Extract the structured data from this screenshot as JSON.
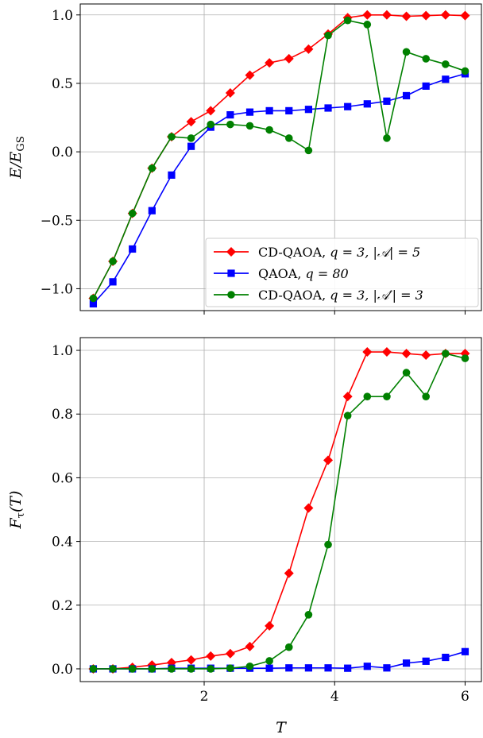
{
  "chart_data": [
    {
      "type": "line",
      "ylabel": "E/E_GS",
      "ylabel_parts": {
        "main": "E/E",
        "sub": "GS"
      },
      "xlim": [
        0.1,
        6.25
      ],
      "ylim": [
        -1.16,
        1.08
      ],
      "xticks": [
        2,
        4,
        6
      ],
      "xtick_labels": [],
      "yticks": [
        -1.0,
        -0.5,
        0.0,
        0.5,
        1.0
      ],
      "ytick_labels": [
        "−1.0",
        "−0.5",
        "0.0",
        "0.5",
        "1.0"
      ],
      "grid": true,
      "legend_position": "lower-right",
      "x": [
        0.3,
        0.6,
        0.9,
        1.2,
        1.5,
        1.8,
        2.1,
        2.4,
        2.7,
        3.0,
        3.3,
        3.6,
        3.9,
        4.2,
        4.5,
        4.8,
        5.1,
        5.4,
        5.7,
        6.0
      ],
      "series": [
        {
          "name": "CD-QAOA, q = 3, |𝒜| = 5",
          "color": "#ff0000",
          "marker": "diamond",
          "values": [
            -1.07,
            -0.8,
            -0.45,
            -0.12,
            0.11,
            0.22,
            0.3,
            0.43,
            0.56,
            0.65,
            0.68,
            0.75,
            0.86,
            0.98,
            1.0,
            1.0,
            0.99,
            0.995,
            1.0,
            0.995
          ]
        },
        {
          "name": "QAOA, q = 80",
          "color": "#0000ff",
          "marker": "square",
          "values": [
            -1.11,
            -0.95,
            -0.71,
            -0.43,
            -0.17,
            0.04,
            0.18,
            0.27,
            0.29,
            0.3,
            0.3,
            0.31,
            0.32,
            0.33,
            0.35,
            0.37,
            0.41,
            0.48,
            0.53,
            0.57
          ]
        },
        {
          "name": "CD-QAOA, q = 3, |𝒜′| = 3",
          "color": "#008000",
          "marker": "circle",
          "values": [
            -1.07,
            -0.8,
            -0.45,
            -0.12,
            0.11,
            0.1,
            0.2,
            0.2,
            0.19,
            0.16,
            0.1,
            0.01,
            0.85,
            0.96,
            0.93,
            0.1,
            0.73,
            0.68,
            0.64,
            0.59
          ]
        }
      ]
    },
    {
      "type": "line",
      "ylabel": "F_τ(T)",
      "ylabel_parts": {
        "main": "F",
        "sub": "τ",
        "tail": "(T)"
      },
      "xlabel": "T",
      "xlim": [
        0.1,
        6.25
      ],
      "ylim": [
        -0.04,
        1.04
      ],
      "xticks": [
        2,
        4,
        6
      ],
      "xtick_labels": [
        "2",
        "4",
        "6"
      ],
      "yticks": [
        0.0,
        0.2,
        0.4,
        0.6,
        0.8,
        1.0
      ],
      "ytick_labels": [
        "0.0",
        "0.2",
        "0.4",
        "0.6",
        "0.8",
        "1.0"
      ],
      "grid": true,
      "x": [
        0.3,
        0.6,
        0.9,
        1.2,
        1.5,
        1.8,
        2.1,
        2.4,
        2.7,
        3.0,
        3.3,
        3.6,
        3.9,
        4.2,
        4.5,
        4.8,
        5.1,
        5.4,
        5.7,
        6.0
      ],
      "series": [
        {
          "name": "CD-QAOA, q = 3, |𝒜| = 5",
          "color": "#ff0000",
          "marker": "diamond",
          "values": [
            0.0,
            0.0,
            0.005,
            0.012,
            0.02,
            0.028,
            0.04,
            0.048,
            0.07,
            0.135,
            0.3,
            0.505,
            0.655,
            0.855,
            0.995,
            0.995,
            0.99,
            0.985,
            0.99,
            0.99
          ]
        },
        {
          "name": "QAOA, q = 80",
          "color": "#0000ff",
          "marker": "square",
          "values": [
            0.0,
            0.0,
            0.0,
            0.0,
            0.002,
            0.002,
            0.002,
            0.002,
            0.002,
            0.002,
            0.003,
            0.003,
            0.003,
            0.002,
            0.008,
            0.003,
            0.018,
            0.024,
            0.036,
            0.054
          ]
        },
        {
          "name": "CD-QAOA, q = 3, |𝒜′| = 3",
          "color": "#008000",
          "marker": "circle",
          "values": [
            0.0,
            0.0,
            0.0,
            0.0,
            0.0,
            0.0,
            0.0,
            0.002,
            0.008,
            0.025,
            0.068,
            0.17,
            0.39,
            0.795,
            0.855,
            0.855,
            0.93,
            0.855,
            0.99,
            0.975
          ]
        }
      ]
    }
  ],
  "legend": {
    "items": [
      {
        "label_main": "CD-QAOA, ",
        "label_math": "q = 3, |𝒜| = 5",
        "color": "#ff0000",
        "marker": "diamond"
      },
      {
        "label_main": "QAOA, ",
        "label_math": "q = 80",
        "color": "#0000ff",
        "marker": "square"
      },
      {
        "label_main": "CD-QAOA, ",
        "label_math": "q = 3, |𝒜′| = 3",
        "color": "#008000",
        "marker": "circle"
      }
    ]
  }
}
